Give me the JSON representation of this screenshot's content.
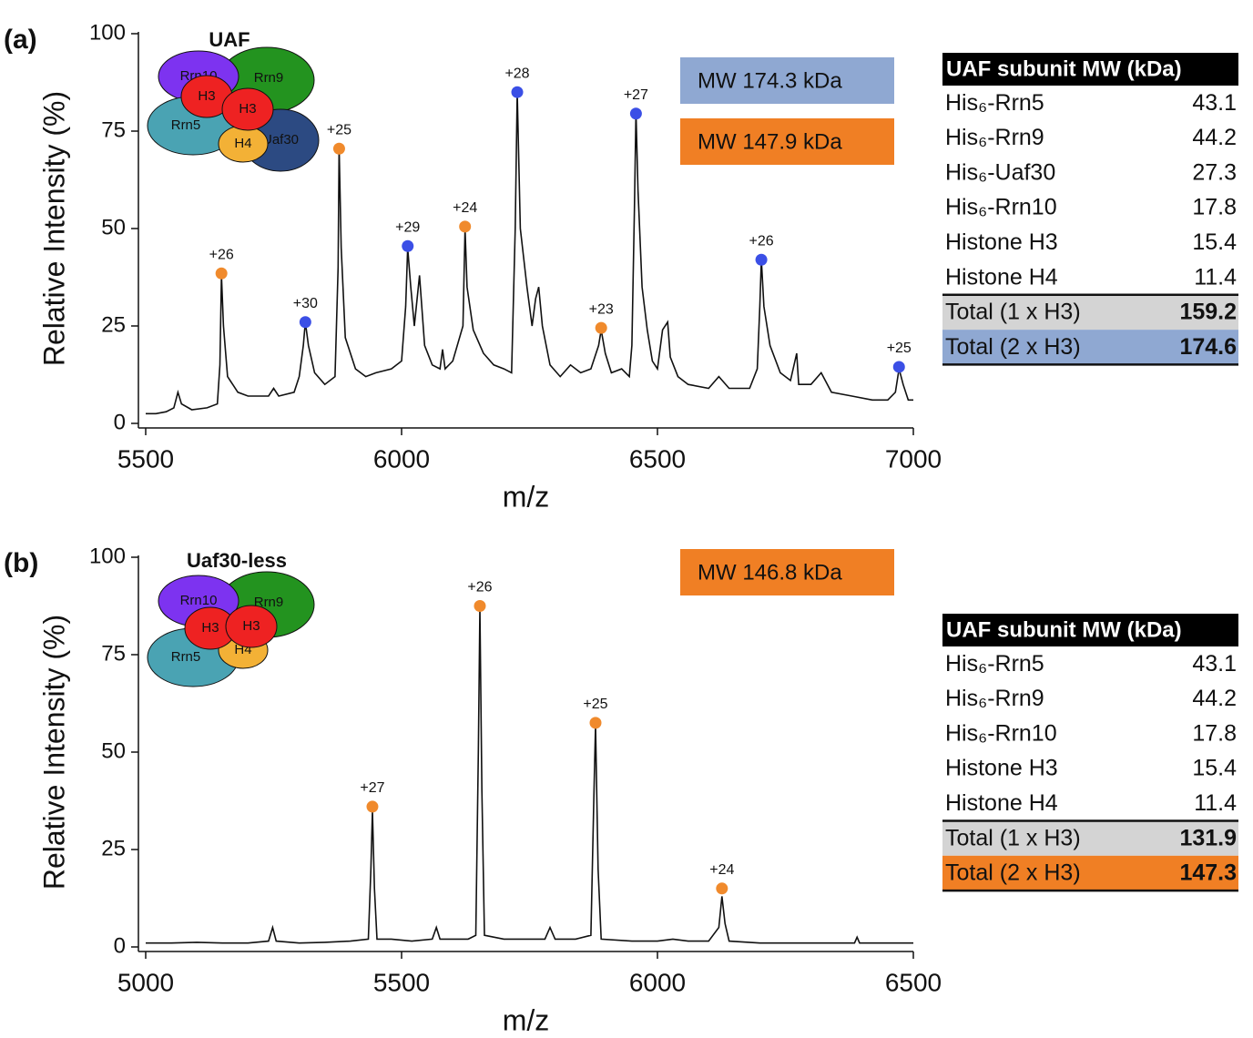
{
  "chart_data": [
    {
      "type": "line",
      "panel_label": "(a)",
      "title": "UAF",
      "xlabel": "m/z",
      "ylabel": "Relative Intensity (%)",
      "xlim": [
        5500,
        7000
      ],
      "xticks": [
        5500,
        6000,
        6500,
        7000
      ],
      "ylim": [
        0,
        100
      ],
      "yticks": [
        0,
        25,
        50,
        75,
        100
      ],
      "line_color": "#111111",
      "x": [
        5500,
        5520,
        5540,
        5555,
        5563,
        5570,
        5590,
        5620,
        5640,
        5645,
        5648,
        5652,
        5660,
        5680,
        5700,
        5740,
        5750,
        5760,
        5790,
        5800,
        5808,
        5812,
        5818,
        5830,
        5850,
        5870,
        5876,
        5878,
        5882,
        5890,
        5910,
        5930,
        5950,
        5980,
        6000,
        6008,
        6012,
        6018,
        6025,
        6035,
        6045,
        6060,
        6075,
        6080,
        6085,
        6100,
        6120,
        6124,
        6128,
        6140,
        6160,
        6180,
        6200,
        6215,
        6222,
        6226,
        6232,
        6245,
        6255,
        6262,
        6268,
        6275,
        6290,
        6310,
        6330,
        6350,
        6370,
        6385,
        6390,
        6398,
        6410,
        6430,
        6445,
        6450,
        6455,
        6458,
        6462,
        6470,
        6480,
        6490,
        6500,
        6510,
        6520,
        6525,
        6540,
        6560,
        6600,
        6620,
        6640,
        6680,
        6695,
        6700,
        6703,
        6708,
        6720,
        6740,
        6760,
        6772,
        6776,
        6800,
        6820,
        6840,
        6880,
        6920,
        6950,
        6965,
        6972,
        6980,
        6990,
        7000
      ],
      "values": [
        2.5,
        2.5,
        3,
        4,
        8,
        5,
        3.5,
        4,
        5,
        15,
        38,
        25,
        12,
        8,
        7,
        7,
        9,
        7,
        8,
        12,
        20,
        26,
        20,
        13,
        10,
        12,
        40,
        71,
        45,
        22,
        14,
        12,
        13,
        14,
        16,
        30,
        45,
        35,
        25,
        38,
        20,
        15,
        14,
        19,
        14,
        16,
        25,
        50,
        35,
        24,
        18,
        15,
        14,
        13,
        50,
        85,
        50,
        35,
        25,
        32,
        35,
        25,
        15,
        12,
        15,
        13,
        14,
        20,
        24,
        18,
        13,
        14,
        12,
        20,
        55,
        80,
        60,
        35,
        24,
        16,
        14,
        24,
        26,
        17,
        12,
        10,
        9,
        12,
        9,
        9,
        14,
        30,
        42,
        30,
        20,
        13,
        11,
        18,
        10,
        10,
        13,
        8,
        7,
        6,
        6,
        8,
        14,
        10,
        6,
        6
      ],
      "peaks": [
        {
          "name": "MW 174.3 kDa",
          "color": "#3b4fe6",
          "box_color": "#8fa8d2",
          "x": [
            5812,
            6012,
            6226,
            6458,
            6703,
            6972
          ],
          "values": [
            26,
            45.5,
            85,
            79.5,
            42,
            14.5
          ],
          "labels": [
            "+30",
            "+29",
            "+28",
            "+27",
            "+26",
            "+25"
          ]
        },
        {
          "name": "MW 147.9 kDa",
          "color": "#f08a2c",
          "box_color": "#f07f24",
          "x": [
            5648,
            5878,
            6124,
            6390
          ],
          "values": [
            38.5,
            70.5,
            50.5,
            24.5
          ],
          "labels": [
            "+26",
            "+25",
            "+24",
            "+23"
          ]
        }
      ],
      "diagram": [
        "Rrn10",
        "Rrn9",
        "H3",
        "H3",
        "Rrn5",
        "H4",
        "Uaf30"
      ],
      "table": {
        "header": "UAF subunit MW (kDa)",
        "rows": [
          {
            "cells": [
              "His₆-Rrn5",
              "43.1"
            ]
          },
          {
            "cells": [
              "His₆-Rrn9",
              "44.2"
            ]
          },
          {
            "cells": [
              "His₆-Uaf30",
              "27.3"
            ]
          },
          {
            "cells": [
              "His₆-Rrn10",
              "17.8"
            ]
          },
          {
            "cells": [
              "Histone H3",
              "15.4"
            ]
          },
          {
            "cells": [
              "Histone H4",
              "11.4"
            ]
          },
          {
            "cells": [
              "Total (1 x H3)",
              "159.2"
            ],
            "fill": "#d4d4d4"
          },
          {
            "cells": [
              "Total (2 x H3)",
              "174.6"
            ],
            "fill": "#8fa8d2"
          }
        ]
      }
    },
    {
      "type": "line",
      "panel_label": "(b)",
      "title": "Uaf30-less",
      "xlabel": "m/z",
      "ylabel": "Relative Intensity (%)",
      "xlim": [
        5000,
        6500
      ],
      "xticks": [
        5000,
        5500,
        6000,
        6500
      ],
      "ylim": [
        0,
        100
      ],
      "yticks": [
        0,
        25,
        50,
        75,
        100
      ],
      "line_color": "#111111",
      "x": [
        5000,
        5050,
        5100,
        5150,
        5200,
        5240,
        5248,
        5255,
        5300,
        5350,
        5400,
        5435,
        5440,
        5443,
        5447,
        5452,
        5480,
        5520,
        5560,
        5568,
        5575,
        5600,
        5630,
        5645,
        5650,
        5653,
        5657,
        5662,
        5700,
        5750,
        5780,
        5790,
        5800,
        5840,
        5870,
        5876,
        5879,
        5884,
        5890,
        5950,
        6000,
        6030,
        6060,
        6100,
        6120,
        6126,
        6132,
        6140,
        6200,
        6300,
        6385,
        6390,
        6395,
        6450,
        6500
      ],
      "values": [
        1,
        1,
        1.2,
        1,
        1,
        1.5,
        5,
        1.5,
        1,
        1.2,
        1.5,
        2,
        20,
        35,
        15,
        2,
        2,
        1.5,
        2,
        5,
        2,
        2,
        2,
        3,
        50,
        87,
        40,
        3,
        2,
        2,
        2,
        5,
        2,
        2,
        3,
        40,
        57,
        20,
        2,
        1.5,
        1.5,
        2,
        1.5,
        1.5,
        5,
        13,
        6,
        1.5,
        1,
        1,
        1,
        2.5,
        1,
        1,
        1
      ],
      "peaks": [
        {
          "name": "MW 146.8 kDa",
          "color": "#f08a2c",
          "box_color": "#f07f24",
          "x": [
            5443,
            5653,
            5879,
            6126
          ],
          "values": [
            36,
            87.5,
            57.5,
            15
          ],
          "labels": [
            "+27",
            "+26",
            "+25",
            "+24"
          ]
        }
      ],
      "diagram": [
        "Rrn10",
        "Rrn9",
        "H3",
        "H3",
        "Rrn5",
        "H4"
      ],
      "table": {
        "header": "UAF subunit MW (kDa)",
        "rows": [
          {
            "cells": [
              "His₆-Rrn5",
              "43.1"
            ]
          },
          {
            "cells": [
              "His₆-Rrn9",
              "44.2"
            ]
          },
          {
            "cells": [
              "His₆-Rrn10",
              "17.8"
            ]
          },
          {
            "cells": [
              "Histone H3",
              "15.4"
            ]
          },
          {
            "cells": [
              "Histone H4",
              "11.4"
            ]
          },
          {
            "cells": [
              "Total (1 x H3)",
              "131.9"
            ],
            "fill": "#d4d4d4"
          },
          {
            "cells": [
              "Total (2 x H3)",
              "147.3"
            ],
            "fill": "#f07f24"
          }
        ]
      }
    }
  ]
}
